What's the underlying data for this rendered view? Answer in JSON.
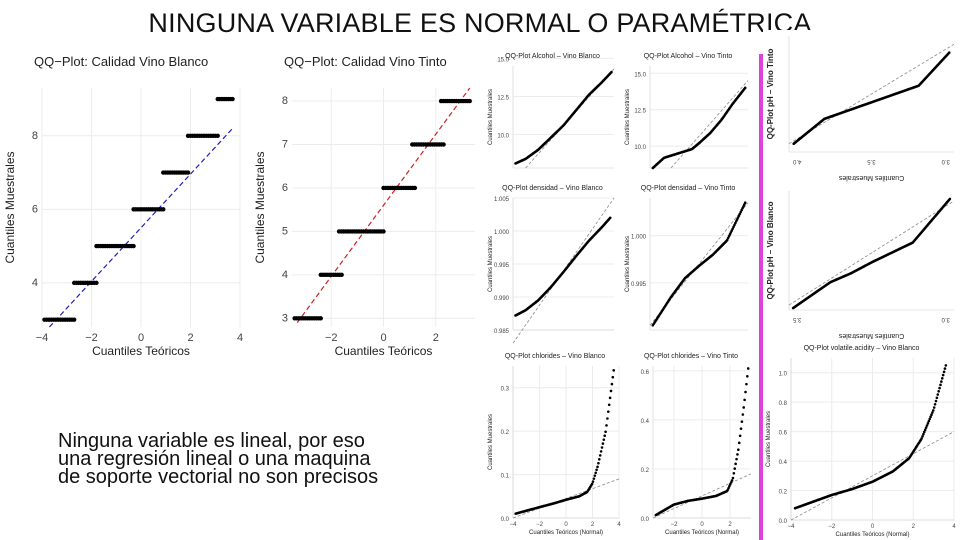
{
  "title": "NINGUNA VARIABLE ES NORMAL O PARAMÉTRICA",
  "note": [
    "Ninguna variable es lineal, por eso",
    "una regresión lineal o una maquina",
    "de soporte vectorial no son precisos"
  ],
  "chart_data": [
    {
      "id": "c1",
      "type": "scatter",
      "title": "QQ−Plot: Calidad Vino Blanco",
      "xlabel": "Cuantiles Teóricos",
      "ylabel": "Cuantiles Muestrales",
      "xlim": [
        -4,
        4
      ],
      "ylim": [
        2.8,
        9.3
      ],
      "xticks": [
        -4,
        -2,
        0,
        2,
        4
      ],
      "yticks": [
        4,
        6,
        8
      ],
      "line": {
        "x": [
          -3.7,
          3.7
        ],
        "y": [
          2.8,
          8.2
        ],
        "color": "#2020c0"
      },
      "steps": [
        {
          "y": 3,
          "x0": -3.9,
          "x1": -2.7
        },
        {
          "y": 4,
          "x0": -2.7,
          "x1": -1.8
        },
        {
          "y": 5,
          "x0": -1.8,
          "x1": -0.3
        },
        {
          "y": 6,
          "x0": -0.3,
          "x1": 0.9
        },
        {
          "y": 7,
          "x0": 0.9,
          "x1": 1.9
        },
        {
          "y": 8,
          "x0": 1.9,
          "x1": 3.1
        },
        {
          "y": 9,
          "x0": 3.1,
          "x1": 3.7
        }
      ]
    },
    {
      "id": "c2",
      "type": "scatter",
      "title": "QQ−Plot: Calidad Vino Tinto",
      "xlabel": "Cuantiles Teóricos",
      "ylabel": "Cuantiles Muestrales",
      "xlim": [
        -3.5,
        3.5
      ],
      "ylim": [
        2.8,
        8.3
      ],
      "xticks": [
        -2,
        0,
        2
      ],
      "yticks": [
        3,
        4,
        5,
        6,
        7,
        8
      ],
      "line": {
        "x": [
          -3.3,
          3.3
        ],
        "y": [
          2.9,
          8.3
        ],
        "color": "#d02020"
      },
      "steps": [
        {
          "y": 3,
          "x0": -3.4,
          "x1": -2.4
        },
        {
          "y": 4,
          "x0": -2.4,
          "x1": -1.6
        },
        {
          "y": 5,
          "x0": -1.7,
          "x1": 0.0
        },
        {
          "y": 6,
          "x0": 0.0,
          "x1": 1.2
        },
        {
          "y": 7,
          "x0": 1.1,
          "x1": 2.3
        },
        {
          "y": 8,
          "x0": 2.2,
          "x1": 3.3
        }
      ]
    },
    {
      "id": "c3",
      "type": "scatter",
      "title": "QQ-Plot Alcohol – Vino Blanco",
      "ylabel": "Cuantiles Muestrales",
      "xlim": [
        -4,
        4
      ],
      "ylim": [
        7.8,
        14.5
      ],
      "yticks": [
        10,
        12.5,
        15
      ],
      "ytickLabels": [
        "10.0",
        "12.5",
        "15.0"
      ],
      "line": {
        "x": [
          -3,
          4
        ],
        "y": [
          7.8,
          14.3
        ],
        "color": "#888888"
      },
      "curve": {
        "x": [
          -3.8,
          -3,
          -2,
          -1,
          0,
          1,
          2,
          3,
          3.8
        ],
        "y": [
          8.1,
          8.4,
          9.0,
          9.8,
          10.6,
          11.6,
          12.6,
          13.4,
          14.1
        ]
      }
    },
    {
      "id": "c4",
      "type": "scatter",
      "title": "QQ-Plot Alcohol – Vino Tinto",
      "ylabel": "Cuantiles Muestrales",
      "xlim": [
        -3.5,
        3.5
      ],
      "ylim": [
        8.5,
        15.5
      ],
      "yticks": [
        10,
        12.5,
        15
      ],
      "ytickLabels": [
        "10.0",
        "12.5",
        "15.0"
      ],
      "line": {
        "x": [
          -2,
          3.5
        ],
        "y": [
          8.5,
          14.5
        ],
        "color": "#888888"
      },
      "curve": {
        "x": [
          -3.3,
          -2.5,
          -1.5,
          -0.5,
          0,
          0.8,
          1.6,
          2.4,
          3.3
        ],
        "y": [
          8.5,
          9.2,
          9.5,
          9.8,
          10.2,
          10.9,
          11.8,
          12.9,
          14.0
        ]
      }
    },
    {
      "id": "c5",
      "type": "scatter",
      "title": "QQ-Plot pH – Vino Tinto",
      "ylabel": "QQ-Plot pH – Vino Tinto",
      "xlabel": "Cuantiles Muestrales",
      "xlim": [
        -3.5,
        3.5
      ],
      "ylim": [
        2.7,
        4.1
      ],
      "xticks": [
        4.0,
        3.5,
        3.0
      ],
      "xtickLabels": [
        "4.0",
        "3.5",
        "3.0"
      ],
      "line": {
        "x": [
          -3.5,
          3.5
        ],
        "y": [
          2.8,
          4.0
        ],
        "color": "#888888"
      },
      "curve": {
        "x": [
          -3.3,
          -2,
          -1,
          0,
          1,
          2,
          3.3
        ],
        "y": [
          2.8,
          3.1,
          3.2,
          3.3,
          3.4,
          3.5,
          3.9
        ]
      }
    },
    {
      "id": "c6",
      "type": "scatter",
      "title": "QQ-Plot densidad – Vino Blanco",
      "ylabel": "Cuantiles Muestrales",
      "xlim": [
        -4,
        4
      ],
      "ylim": [
        0.985,
        1.005
      ],
      "yticks": [
        0.985,
        0.99,
        0.995,
        1.0,
        1.005
      ],
      "ytickLabels": [
        "0.985",
        "0.990",
        "0.995",
        "1.000",
        "1.005"
      ],
      "line": {
        "x": [
          -4,
          4
        ],
        "y": [
          0.983,
          1.005
        ],
        "color": "#888888"
      },
      "curve": {
        "x": [
          -3.8,
          -3,
          -2,
          -1,
          0,
          1,
          2,
          3,
          3.7
        ],
        "y": [
          0.9872,
          0.988,
          0.9895,
          0.9915,
          0.9938,
          0.9962,
          0.9985,
          1.0005,
          1.002
        ]
      }
    },
    {
      "id": "c7",
      "type": "scatter",
      "title": "QQ-Plot densidad – Vino Tinto",
      "ylabel": "Cuantiles Muestrales",
      "xlim": [
        -3.5,
        3.5
      ],
      "ylim": [
        0.99,
        1.004
      ],
      "yticks": [
        0.995,
        1.0
      ],
      "ytickLabels": [
        "0.995",
        "1.000"
      ],
      "line": {
        "x": [
          -3.5,
          3.5
        ],
        "y": [
          0.9905,
          1.0035
        ],
        "color": "#888888"
      },
      "curve": {
        "x": [
          -3.3,
          -2,
          -1,
          0,
          1,
          2,
          3.3
        ],
        "y": [
          0.9905,
          0.9935,
          0.9955,
          0.9968,
          0.998,
          0.9995,
          1.0035
        ]
      }
    },
    {
      "id": "c8",
      "type": "scatter",
      "title": "QQ-Plot pH – Vino Blanco",
      "ylabel": "QQ-Plot pH – Vino Blanco",
      "xlabel": "Cuantiles Muestrales",
      "xlim": [
        -4,
        4
      ],
      "ylim": [
        2.7,
        3.9
      ],
      "xticks": [
        3.5,
        3.0
      ],
      "xtickLabels": [
        "3.5",
        "3.0"
      ],
      "line": {
        "x": [
          -4,
          4
        ],
        "y": [
          2.75,
          3.8
        ],
        "color": "#888888"
      },
      "curve": {
        "x": [
          -3.8,
          -2,
          -1,
          0,
          1,
          2,
          3.8
        ],
        "y": [
          2.72,
          2.98,
          3.07,
          3.18,
          3.28,
          3.38,
          3.82
        ]
      }
    },
    {
      "id": "c9",
      "type": "scatter",
      "title": "QQ-Plot chlorides – Vino Blanco",
      "xlabel": "Cuantiles Teóricos (Normal)",
      "ylabel": "Cuantiles Muestrales",
      "xlim": [
        -4,
        4
      ],
      "ylim": [
        0,
        0.35
      ],
      "xticks": [
        -4,
        -2,
        0,
        2,
        4
      ],
      "yticks": [
        0,
        0.1,
        0.2,
        0.3
      ],
      "ytickLabels": [
        "0.0",
        "0.1",
        "0.2",
        "0.3"
      ],
      "line": {
        "x": [
          -4,
          4
        ],
        "y": [
          0.0,
          0.09
        ],
        "color": "#888888"
      },
      "curve": {
        "x": [
          -3.8,
          -2,
          -1,
          0,
          1,
          1.6,
          2.0,
          2.4,
          3.0,
          3.6
        ],
        "y": [
          0.01,
          0.025,
          0.033,
          0.042,
          0.05,
          0.06,
          0.08,
          0.12,
          0.2,
          0.34
        ]
      }
    },
    {
      "id": "c10",
      "type": "scatter",
      "title": "QQ-Plot chlorides – Vino Tinto",
      "xlabel": "Cuantiles Teóricos (Normal)",
      "xlim": [
        -3.5,
        3.5
      ],
      "ylim": [
        0,
        0.62
      ],
      "xticks": [
        -2,
        0,
        2
      ],
      "yticks": [
        0,
        0.2,
        0.4,
        0.6
      ],
      "ytickLabels": [
        "0.0",
        "0.2",
        "0.4",
        "0.6"
      ],
      "line": {
        "x": [
          -3.5,
          3.5
        ],
        "y": [
          0.0,
          0.18
        ],
        "color": "#888888"
      },
      "curve": {
        "x": [
          -3.3,
          -2,
          -1,
          0,
          1,
          1.8,
          2.2,
          2.6,
          3.0,
          3.3
        ],
        "y": [
          0.012,
          0.055,
          0.07,
          0.079,
          0.09,
          0.11,
          0.16,
          0.28,
          0.46,
          0.61
        ]
      }
    },
    {
      "id": "c11",
      "type": "scatter",
      "title": "QQ-Plot volatile.acidity – Vino Blanco",
      "xlabel": "Cuantiles Teóricos (Normal)",
      "ylabel": "Cuantiles Muestrales",
      "xlim": [
        -4,
        4
      ],
      "ylim": [
        0,
        1.1
      ],
      "xticks": [
        -4,
        -2,
        0,
        2,
        4
      ],
      "yticks": [
        0,
        0.2,
        0.4,
        0.6,
        0.8,
        1.0
      ],
      "ytickLabels": [
        "0.0",
        "0.2",
        "0.4",
        "0.6",
        "0.8",
        "1.0"
      ],
      "line": {
        "x": [
          -4,
          4
        ],
        "y": [
          0.0,
          0.6
        ],
        "color": "#888888"
      },
      "curve": {
        "x": [
          -3.8,
          -2,
          -1,
          0,
          1,
          1.8,
          2.4,
          3.0,
          3.6
        ],
        "y": [
          0.08,
          0.17,
          0.21,
          0.26,
          0.33,
          0.42,
          0.55,
          0.75,
          1.05
        ]
      }
    }
  ]
}
